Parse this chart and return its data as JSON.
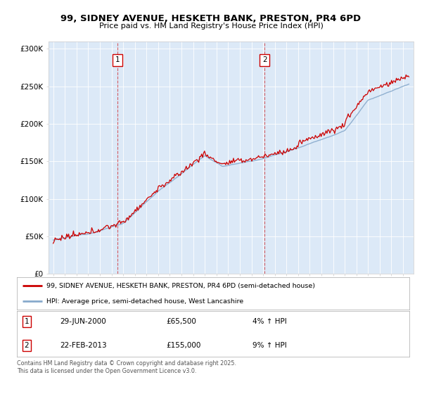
{
  "title": "99, SIDNEY AVENUE, HESKETH BANK, PRESTON, PR4 6PD",
  "subtitle": "Price paid vs. HM Land Registry's House Price Index (HPI)",
  "background_color": "#ffffff",
  "plot_bg_color": "#dce9f7",
  "ylim": [
    0,
    310000
  ],
  "yticks": [
    0,
    50000,
    100000,
    150000,
    200000,
    250000,
    300000
  ],
  "ytick_labels": [
    "£0",
    "£50K",
    "£100K",
    "£150K",
    "£200K",
    "£250K",
    "£300K"
  ],
  "x_start_year": 1995,
  "x_end_year": 2025,
  "line1_color": "#cc0000",
  "line2_color": "#88aacc",
  "marker1_x": 2000.49,
  "marker1_label": "1",
  "marker2_x": 2013.13,
  "marker2_label": "2",
  "sale1_date": "29-JUN-2000",
  "sale1_price": "£65,500",
  "sale1_hpi": "4% ↑ HPI",
  "sale2_date": "22-FEB-2013",
  "sale2_price": "£155,000",
  "sale2_hpi": "9% ↑ HPI",
  "legend1": "99, SIDNEY AVENUE, HESKETH BANK, PRESTON, PR4 6PD (semi-detached house)",
  "legend2": "HPI: Average price, semi-detached house, West Lancashire",
  "footer": "Contains HM Land Registry data © Crown copyright and database right 2025.\nThis data is licensed under the Open Government Licence v3.0."
}
